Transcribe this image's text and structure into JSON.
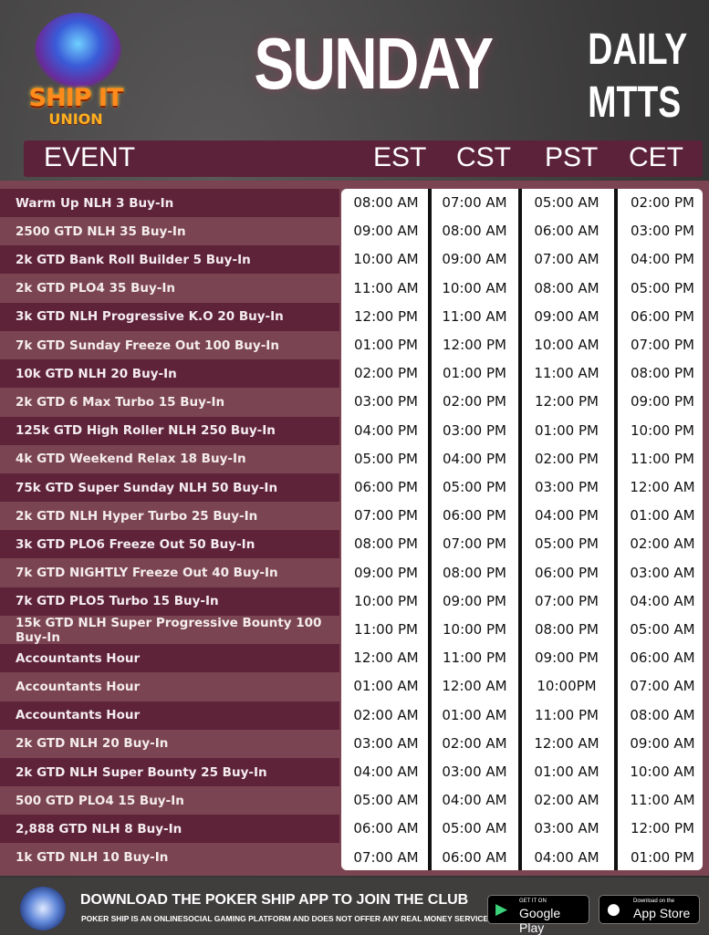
{
  "logo": {
    "line1": "SHIP IT",
    "line2": "UNION"
  },
  "title": "SUNDAY",
  "subtitle": [
    "DAILY",
    "MTTS"
  ],
  "header": {
    "event": "EVENT",
    "columns": [
      "EST",
      "CST",
      "PST",
      "CET"
    ]
  },
  "rows": [
    {
      "event": "Warm Up NLH  3 Buy-In",
      "times": [
        "08:00 AM",
        "07:00 AM",
        "05:00 AM",
        "02:00 PM"
      ]
    },
    {
      "event": "2500 GTD NLH  35 Buy-In",
      "times": [
        "09:00 AM",
        "08:00 AM",
        "06:00 AM",
        "03:00 PM"
      ]
    },
    {
      "event": "2k GTD Bank Roll Builder  5 Buy-In",
      "times": [
        "10:00 AM",
        "09:00 AM",
        "07:00 AM",
        "04:00 PM"
      ]
    },
    {
      "event": "2k GTD PLO4  35 Buy-In",
      "times": [
        "11:00 AM",
        "10:00 AM",
        "08:00 AM",
        "05:00 PM"
      ]
    },
    {
      "event": "3k GTD NLH Progressive K.O  20 Buy-In",
      "times": [
        "12:00 PM",
        "11:00 AM",
        "09:00 AM",
        "06:00 PM"
      ]
    },
    {
      "event": "7k GTD Sunday Freeze Out  100 Buy-In",
      "times": [
        "01:00 PM",
        "12:00 PM",
        "10:00 AM",
        "07:00 PM"
      ]
    },
    {
      "event": "10k GTD NLH  20 Buy-In",
      "times": [
        "02:00 PM",
        "01:00 PM",
        "11:00 AM",
        "08:00 PM"
      ]
    },
    {
      "event": "2k GTD 6 Max Turbo  15 Buy-In",
      "times": [
        "03:00 PM",
        "02:00 PM",
        "12:00 PM",
        "09:00 PM"
      ]
    },
    {
      "event": "125k GTD High Roller NLH 250 Buy-In",
      "times": [
        "04:00 PM",
        "03:00 PM",
        "01:00 PM",
        "10:00 PM"
      ]
    },
    {
      "event": "4k GTD Weekend Relax  18 Buy-In",
      "times": [
        "05:00 PM",
        "04:00 PM",
        "02:00 PM",
        "11:00 PM"
      ]
    },
    {
      "event": "75k GTD Super Sunday NLH  50 Buy-In",
      "times": [
        "06:00 PM",
        "05:00 PM",
        "03:00 PM",
        "12:00 AM"
      ]
    },
    {
      "event": "2k GTD NLH Hyper Turbo  25 Buy-In",
      "times": [
        "07:00 PM",
        "06:00 PM",
        "04:00 PM",
        "01:00 AM"
      ]
    },
    {
      "event": "3k GTD PLO6 Freeze Out  50 Buy-In",
      "times": [
        "08:00 PM",
        "07:00 PM",
        "05:00 PM",
        "02:00 AM"
      ]
    },
    {
      "event": "7k GTD NIGHTLY Freeze Out  40 Buy-In",
      "times": [
        "09:00 PM",
        "08:00 PM",
        "06:00 PM",
        "03:00 AM"
      ]
    },
    {
      "event": "7k GTD PLO5 Turbo  15 Buy-In",
      "times": [
        "10:00 PM",
        "09:00 PM",
        "07:00 PM",
        "04:00 AM"
      ]
    },
    {
      "event": "15k GTD NLH Super Progressive Bounty  100 Buy-In",
      "times": [
        "11:00 PM",
        "10:00 PM",
        "08:00 PM",
        "05:00 AM"
      ]
    },
    {
      "event": "Accountants Hour",
      "times": [
        "12:00 AM",
        "11:00 PM",
        "09:00 PM",
        "06:00 AM"
      ]
    },
    {
      "event": "Accountants Hour",
      "times": [
        "01:00 AM",
        "12:00 AM",
        "10:00PM",
        "07:00 AM"
      ]
    },
    {
      "event": "Accountants Hour",
      "times": [
        "02:00 AM",
        "01:00 AM",
        "11:00 PM",
        "08:00 AM"
      ]
    },
    {
      "event": "2k GTD NLH  20 Buy-In",
      "times": [
        "03:00 AM",
        "02:00 AM",
        "12:00 AM",
        "09:00 AM"
      ]
    },
    {
      "event": "2k GTD NLH Super Bounty   25 Buy-In",
      "times": [
        "04:00 AM",
        "03:00 AM",
        "01:00 AM",
        "10:00 AM"
      ]
    },
    {
      "event": "500 GTD PLO4  15 Buy-In",
      "times": [
        "05:00 AM",
        "04:00 AM",
        "02:00 AM",
        "11:00 AM"
      ]
    },
    {
      "event": "2,888 GTD NLH  8 Buy-In",
      "times": [
        "06:00 AM",
        "05:00 AM",
        "03:00 AM",
        "12:00 PM"
      ]
    },
    {
      "event": "1k GTD NLH  10 Buy-In",
      "times": [
        "07:00 AM",
        "06:00 AM",
        "04:00 AM",
        "01:00 PM"
      ]
    }
  ],
  "footer": {
    "headline": "DOWNLOAD THE POKER SHIP APP TO JOIN THE CLUB",
    "disclaimer": "POKER SHIP IS AN ONLINESOCIAL GAMING PLATFORM AND DOES NOT OFFER ANY REAL MONEY SERVICE",
    "google_small": "GET IT ON",
    "google_big": "Google Play",
    "apple_small": "Download on the",
    "apple_big": "App Store"
  },
  "colors": {
    "dark_row": "#5e2239",
    "light_row": "#7b4452",
    "header_band": "#5c2239"
  }
}
